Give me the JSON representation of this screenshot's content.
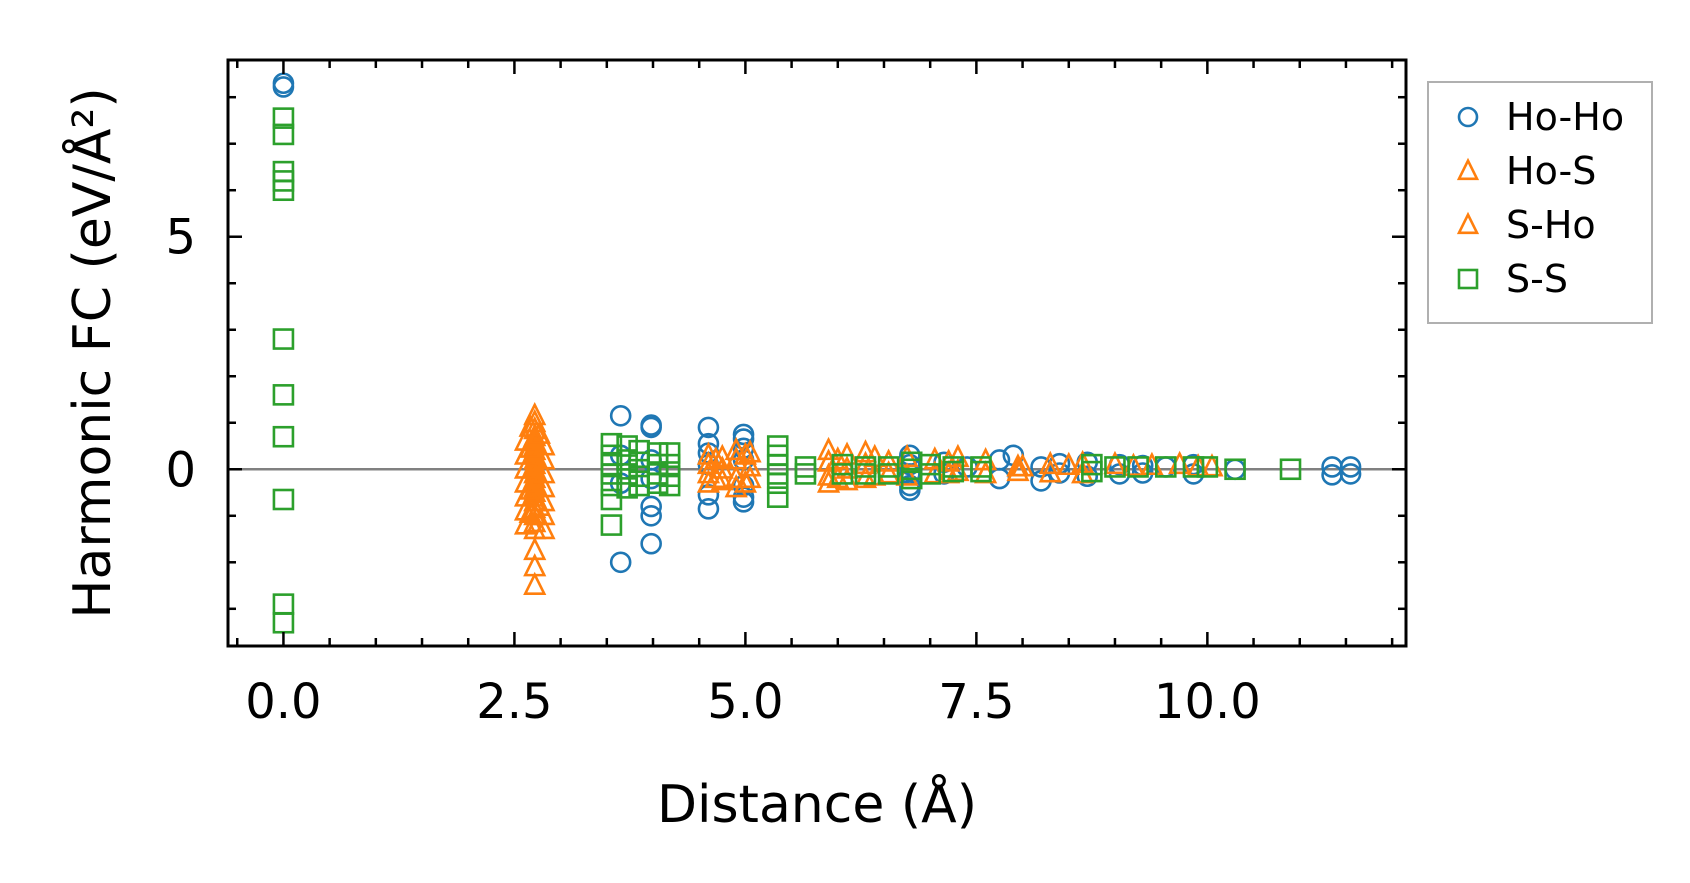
{
  "chart_data": {
    "type": "scatter",
    "title": "",
    "xlabel": "Distance (Å)",
    "ylabel": "Harmonic FC (eV/Å²)",
    "xlim": [
      -0.6,
      12.15
    ],
    "ylim": [
      -3.8,
      8.8
    ],
    "x_ticks": [
      0.0,
      2.5,
      5.0,
      7.5,
      10.0
    ],
    "x_tick_labels": [
      "0.0",
      "2.5",
      "5.0",
      "7.5",
      "10.0"
    ],
    "y_ticks": [
      0,
      5
    ],
    "y_tick_labels": [
      "0",
      "5"
    ],
    "zero_line": true,
    "legend_position": "outside-right-top",
    "series": [
      {
        "name": "Ho-Ho",
        "marker": "circle",
        "color": "#1f77b4",
        "points": [
          [
            0,
            8.3
          ],
          [
            0,
            8.22
          ],
          [
            3.65,
            1.15
          ],
          [
            3.65,
            -2.0
          ],
          [
            3.65,
            0.3
          ],
          [
            3.65,
            -0.3
          ],
          [
            3.98,
            0.95
          ],
          [
            3.98,
            0.9
          ],
          [
            3.98,
            -0.8
          ],
          [
            3.98,
            -1.0
          ],
          [
            3.98,
            -1.6
          ],
          [
            3.98,
            0.2
          ],
          [
            3.98,
            -0.2
          ],
          [
            4.6,
            0.9
          ],
          [
            4.6,
            0.55
          ],
          [
            4.6,
            0.35
          ],
          [
            4.6,
            -0.55
          ],
          [
            4.6,
            -0.85
          ],
          [
            4.6,
            0.1
          ],
          [
            4.98,
            0.75
          ],
          [
            4.98,
            0.65
          ],
          [
            4.98,
            0.45
          ],
          [
            4.98,
            0.2
          ],
          [
            4.98,
            -0.35
          ],
          [
            4.98,
            -0.6
          ],
          [
            4.98,
            -0.7
          ],
          [
            6.78,
            0.3
          ],
          [
            6.78,
            -0.35
          ],
          [
            6.78,
            -0.45
          ],
          [
            6.78,
            0.1
          ],
          [
            6.78,
            -0.1
          ],
          [
            7.15,
            0.15
          ],
          [
            7.15,
            -0.1
          ],
          [
            7.4,
            0.05
          ],
          [
            7.75,
            0.2
          ],
          [
            7.75,
            -0.2
          ],
          [
            7.9,
            0.3
          ],
          [
            8.2,
            0.05
          ],
          [
            8.2,
            -0.25
          ],
          [
            8.4,
            0.12
          ],
          [
            8.4,
            -0.08
          ],
          [
            8.7,
            0.15
          ],
          [
            8.7,
            -0.15
          ],
          [
            9.05,
            0.1
          ],
          [
            9.05,
            -0.1
          ],
          [
            9.3,
            0.08
          ],
          [
            9.3,
            -0.08
          ],
          [
            9.55,
            0.05
          ],
          [
            9.85,
            0.1
          ],
          [
            9.85,
            -0.1
          ],
          [
            10.3,
            0.0
          ],
          [
            11.35,
            0.05
          ],
          [
            11.35,
            -0.12
          ],
          [
            11.55,
            0.05
          ],
          [
            11.55,
            -0.1
          ]
        ]
      },
      {
        "name": "Ho-S",
        "marker": "triangle",
        "color": "#ff7f0e",
        "points": [
          [
            2.72,
            1.15
          ],
          [
            2.72,
            1.0
          ],
          [
            2.72,
            0.85
          ],
          [
            2.72,
            0.7
          ],
          [
            2.72,
            0.6
          ],
          [
            2.72,
            0.5
          ],
          [
            2.72,
            0.4
          ],
          [
            2.72,
            0.3
          ],
          [
            2.72,
            0.2
          ],
          [
            2.72,
            0.1
          ],
          [
            2.72,
            0.0
          ],
          [
            2.72,
            -0.1
          ],
          [
            2.72,
            -0.2
          ],
          [
            2.72,
            -0.3
          ],
          [
            2.72,
            -0.4
          ],
          [
            2.72,
            -0.5
          ],
          [
            2.72,
            -0.6
          ],
          [
            2.72,
            -0.7
          ],
          [
            2.72,
            -0.85
          ],
          [
            2.72,
            -1.0
          ],
          [
            2.72,
            -1.15
          ],
          [
            2.72,
            -1.3
          ],
          [
            2.72,
            -1.75
          ],
          [
            2.72,
            -2.1
          ],
          [
            2.72,
            -2.5
          ],
          [
            2.62,
            0.6
          ],
          [
            2.62,
            0.3
          ],
          [
            2.62,
            0.0
          ],
          [
            2.62,
            -0.3
          ],
          [
            2.62,
            -0.6
          ],
          [
            2.62,
            -0.9
          ],
          [
            2.62,
            -1.2
          ],
          [
            2.82,
            0.5
          ],
          [
            2.82,
            0.2
          ],
          [
            2.82,
            -0.1
          ],
          [
            2.82,
            -0.4
          ],
          [
            2.82,
            -0.7
          ],
          [
            2.82,
            -1.0
          ],
          [
            2.82,
            -1.3
          ],
          [
            4.6,
            0.3
          ],
          [
            4.6,
            0.1
          ],
          [
            4.6,
            -0.1
          ],
          [
            4.6,
            -0.3
          ],
          [
            4.75,
            0.25
          ],
          [
            4.75,
            0.0
          ],
          [
            4.75,
            -0.25
          ],
          [
            4.9,
            0.4
          ],
          [
            4.9,
            0.2
          ],
          [
            4.9,
            -0.2
          ],
          [
            4.9,
            -0.4
          ],
          [
            5.05,
            0.35
          ],
          [
            5.05,
            0.05
          ],
          [
            5.05,
            -0.2
          ],
          [
            5.9,
            0.4
          ],
          [
            5.9,
            0.15
          ],
          [
            5.9,
            -0.15
          ],
          [
            5.9,
            -0.3
          ],
          [
            6.1,
            0.3
          ],
          [
            6.1,
            0.0
          ],
          [
            6.1,
            -0.25
          ],
          [
            6.3,
            0.35
          ],
          [
            6.3,
            0.1
          ],
          [
            6.3,
            -0.2
          ],
          [
            6.55,
            0.15
          ],
          [
            6.55,
            -0.1
          ],
          [
            6.75,
            0.25
          ],
          [
            6.75,
            -0.15
          ],
          [
            7.05,
            0.2
          ],
          [
            7.05,
            -0.1
          ],
          [
            7.3,
            0.25
          ],
          [
            7.3,
            -0.05
          ],
          [
            7.6,
            0.18
          ],
          [
            7.6,
            -0.1
          ],
          [
            7.95,
            0.05
          ],
          [
            7.95,
            -0.05
          ],
          [
            8.3,
            0.1
          ],
          [
            8.3,
            -0.08
          ],
          [
            8.65,
            0.12
          ],
          [
            8.65,
            -0.1
          ],
          [
            9.0,
            0.1
          ],
          [
            9.4,
            0.08
          ],
          [
            9.7,
            0.1
          ],
          [
            10.05,
            0.05
          ]
        ]
      },
      {
        "name": "S-Ho",
        "marker": "triangle",
        "color": "#ff7f0e",
        "points": [
          [
            2.67,
            0.9
          ],
          [
            2.67,
            0.45
          ],
          [
            2.67,
            -0.45
          ],
          [
            2.67,
            -0.95
          ],
          [
            2.77,
            0.75
          ],
          [
            2.77,
            -0.8
          ],
          [
            4.68,
            0.2
          ],
          [
            4.68,
            -0.2
          ],
          [
            5.0,
            0.3
          ],
          [
            5.0,
            -0.3
          ],
          [
            6.0,
            0.2
          ],
          [
            6.0,
            -0.2
          ],
          [
            6.4,
            0.25
          ],
          [
            6.4,
            -0.15
          ],
          [
            7.2,
            0.15
          ],
          [
            7.2,
            -0.1
          ],
          [
            8.0,
            0.05
          ],
          [
            8.5,
            0.08
          ],
          [
            9.2,
            0.06
          ],
          [
            9.9,
            0.05
          ]
        ]
      },
      {
        "name": "S-S",
        "marker": "square",
        "color": "#2ca02c",
        "points": [
          [
            0,
            7.55
          ],
          [
            0,
            7.2
          ],
          [
            0,
            6.4
          ],
          [
            0,
            6.2
          ],
          [
            0,
            6.0
          ],
          [
            0,
            2.8
          ],
          [
            0,
            1.6
          ],
          [
            0,
            0.7
          ],
          [
            0,
            -0.65
          ],
          [
            0,
            -2.9
          ],
          [
            0,
            -3.3
          ],
          [
            3.55,
            0.55
          ],
          [
            3.55,
            0.3
          ],
          [
            3.55,
            0.1
          ],
          [
            3.55,
            -0.1
          ],
          [
            3.55,
            -0.35
          ],
          [
            3.55,
            -0.65
          ],
          [
            3.55,
            -1.2
          ],
          [
            3.72,
            0.5
          ],
          [
            3.72,
            0.2
          ],
          [
            3.72,
            -0.1
          ],
          [
            3.72,
            -0.4
          ],
          [
            3.85,
            0.4
          ],
          [
            3.85,
            0.15
          ],
          [
            3.85,
            -0.15
          ],
          [
            3.85,
            -0.35
          ],
          [
            4.05,
            0.35
          ],
          [
            4.05,
            0.1
          ],
          [
            4.05,
            -0.1
          ],
          [
            4.05,
            -0.3
          ],
          [
            4.18,
            0.35
          ],
          [
            4.18,
            0.1
          ],
          [
            4.18,
            -0.15
          ],
          [
            4.18,
            -0.35
          ],
          [
            5.35,
            0.5
          ],
          [
            5.35,
            0.3
          ],
          [
            5.35,
            0.1
          ],
          [
            5.35,
            -0.1
          ],
          [
            5.35,
            -0.3
          ],
          [
            5.35,
            -0.6
          ],
          [
            5.65,
            0.05
          ],
          [
            5.65,
            -0.1
          ],
          [
            6.05,
            0.1
          ],
          [
            6.05,
            -0.1
          ],
          [
            6.3,
            0.05
          ],
          [
            6.3,
            -0.1
          ],
          [
            6.55,
            0.05
          ],
          [
            6.55,
            -0.1
          ],
          [
            6.8,
            0.15
          ],
          [
            6.8,
            0.0
          ],
          [
            6.8,
            -0.2
          ],
          [
            7.0,
            0.1
          ],
          [
            7.0,
            -0.1
          ],
          [
            7.25,
            0.05
          ],
          [
            7.25,
            -0.05
          ],
          [
            7.55,
            0.05
          ],
          [
            7.55,
            -0.05
          ],
          [
            8.75,
            0.1
          ],
          [
            8.75,
            -0.05
          ],
          [
            9.0,
            0.05
          ],
          [
            9.25,
            0.05
          ],
          [
            9.55,
            0.05
          ],
          [
            9.85,
            0.05
          ],
          [
            10.0,
            0.05
          ],
          [
            10.3,
            0.0
          ],
          [
            10.9,
            0.0
          ]
        ]
      }
    ]
  }
}
